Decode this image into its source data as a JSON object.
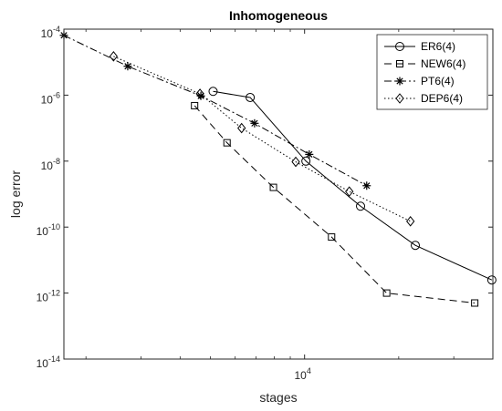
{
  "chart_data": {
    "type": "line",
    "title": "Inhomogeneous",
    "xlabel": "stages",
    "ylabel": "log error",
    "xscale": "log",
    "yscale": "log",
    "xlim": [
      1700,
      40000
    ],
    "ylim": [
      1e-14,
      0.0001
    ],
    "x_ticks": [
      {
        "value": 10000,
        "base": "10",
        "exp": "4"
      }
    ],
    "y_ticks": [
      {
        "value": 0.0001,
        "base": "10",
        "exp": "-4"
      },
      {
        "value": 1e-06,
        "base": "10",
        "exp": "-6"
      },
      {
        "value": 1e-08,
        "base": "10",
        "exp": "-8"
      },
      {
        "value": 1e-10,
        "base": "10",
        "exp": "-10"
      },
      {
        "value": 1e-12,
        "base": "10",
        "exp": "-12"
      },
      {
        "value": 1e-14,
        "base": "10",
        "exp": "-14"
      }
    ],
    "legend_position": "top-right",
    "series": [
      {
        "name": "ER6(4)",
        "marker": "circle",
        "dash": "solid",
        "x": [
          5100,
          6700,
          10100,
          15100,
          22600,
          39700
        ],
        "y": [
          1.3e-06,
          8.5e-07,
          1e-08,
          4.3e-10,
          2.8e-11,
          2.5e-12
        ]
      },
      {
        "name": "NEW6(4)",
        "marker": "square",
        "dash": "dashed",
        "x": [
          4450,
          5650,
          7950,
          12200,
          18300,
          35000
        ],
        "y": [
          4.8e-07,
          3.6e-08,
          1.6e-09,
          5e-11,
          1e-12,
          5e-13
        ]
      },
      {
        "name": "PT6(4)",
        "marker": "asterisk",
        "dash": "dashdot",
        "x": [
          1700,
          2720,
          4660,
          6920,
          10350,
          15800
        ],
        "y": [
          6.5e-05,
          7.5e-06,
          9.5e-07,
          1.4e-07,
          1.6e-08,
          1.8e-09
        ]
      },
      {
        "name": "DEP6(4)",
        "marker": "diamond",
        "dash": "dotted",
        "x": [
          2450,
          4630,
          6290,
          9370,
          13900,
          21800
        ],
        "y": [
          1.5e-05,
          1.1e-06,
          1e-07,
          9.5e-09,
          1.2e-09,
          1.5e-10
        ]
      }
    ]
  }
}
